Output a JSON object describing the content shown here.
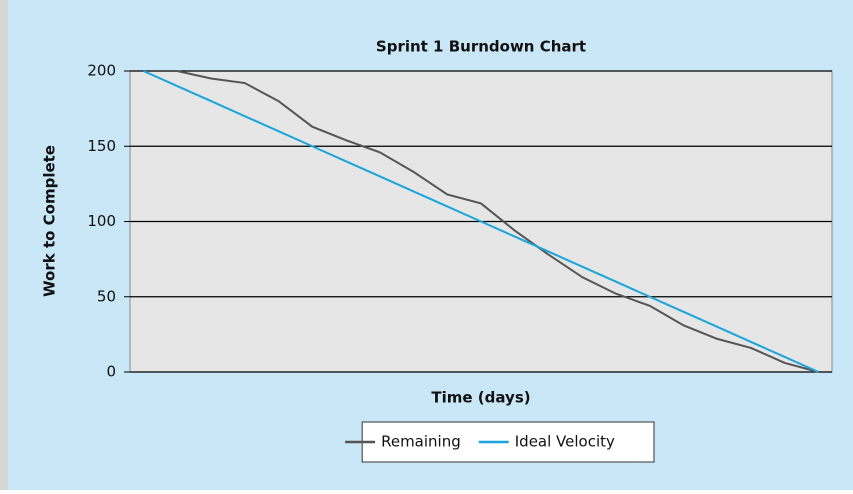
{
  "chart_data": {
    "type": "line",
    "title": "Sprint 1 Burndown Chart",
    "x_label": "Time (days)",
    "y_label": "Work to Complete",
    "x": [
      0,
      1,
      2,
      3,
      4,
      5,
      6,
      7,
      8,
      9,
      10,
      11,
      12,
      13,
      14,
      15,
      16,
      17,
      18,
      19,
      20
    ],
    "series": [
      {
        "name": "Remaining",
        "color": "#555555",
        "values": [
          200,
          200,
          195,
          192,
          180,
          163,
          154,
          146,
          133,
          118,
          112,
          94,
          78,
          63,
          52,
          44,
          31,
          22,
          16,
          6,
          0
        ]
      },
      {
        "name": "Ideal Velocity",
        "color": "#1aa6dd",
        "values": [
          200,
          190,
          180,
          170,
          160,
          150,
          140,
          130,
          120,
          110,
          100,
          90,
          80,
          70,
          60,
          50,
          40,
          30,
          20,
          10,
          0
        ]
      }
    ],
    "xlim": [
      -0.4,
      20.4
    ],
    "ylim": [
      0,
      200
    ],
    "yticks": [
      0,
      50,
      100,
      150,
      200
    ],
    "grid": true,
    "legend": "bottom"
  }
}
